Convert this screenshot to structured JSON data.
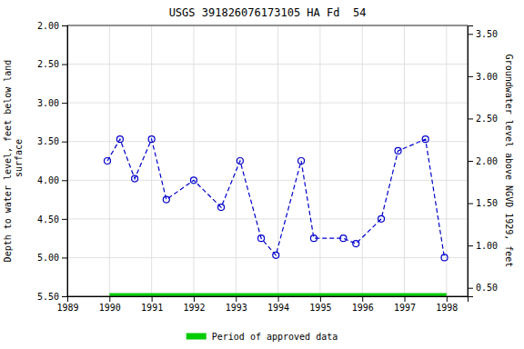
{
  "chart_data": {
    "type": "line",
    "title": "USGS 391826076173105 HA Fd  54",
    "ylabel": "Depth to water level, feet below land\n surface",
    "y2label": "Groundwater level above NGVD 1929, feet",
    "xlim": [
      1989.0,
      1998.5
    ],
    "xticks": [
      1989,
      1990,
      1991,
      1992,
      1993,
      1994,
      1995,
      1996,
      1997,
      1998
    ],
    "ylim": [
      5.5,
      2.0
    ],
    "yticks": [
      {
        "value": 2.0,
        "label": "2.00"
      },
      {
        "value": 2.5,
        "label": "2.50"
      },
      {
        "value": 3.0,
        "label": "3.00"
      },
      {
        "value": 3.5,
        "label": "3.50"
      },
      {
        "value": 4.0,
        "label": "4.00"
      },
      {
        "value": 4.5,
        "label": "4.50"
      },
      {
        "value": 5.0,
        "label": "5.00"
      },
      {
        "value": 5.5,
        "label": "5.50"
      }
    ],
    "y2lim": [
      0.4,
      3.6
    ],
    "y2ticks": [
      {
        "value": 0.5,
        "label": "0.50"
      },
      {
        "value": 1.0,
        "label": "1.00"
      },
      {
        "value": 1.5,
        "label": "1.50"
      },
      {
        "value": 2.0,
        "label": "2.00"
      },
      {
        "value": 2.5,
        "label": "2.50"
      },
      {
        "value": 3.0,
        "label": "3.00"
      },
      {
        "value": 3.5,
        "label": "3.50"
      }
    ],
    "grid": true,
    "legend": "bottom",
    "series": [
      {
        "x": [
          1989.95,
          1990.25,
          1990.6,
          1991.0,
          1991.35,
          1992.0,
          1992.65,
          1993.1,
          1993.6,
          1993.95,
          1994.55,
          1994.85,
          1995.55,
          1995.85,
          1996.45,
          1996.85,
          1997.5,
          1997.95
        ],
        "values": [
          3.75,
          3.47,
          3.98,
          3.47,
          4.25,
          4.0,
          4.35,
          3.75,
          4.75,
          4.97,
          3.75,
          4.75,
          4.75,
          4.82,
          4.5,
          3.62,
          3.47,
          5.0
        ],
        "color": "#0000cc",
        "marker": "circle",
        "line_style": "dashed"
      },
      {
        "name": "Period of approved data",
        "x": [
          1990.0,
          1998.0
        ],
        "values": [
          5.5,
          5.5
        ],
        "color": "#00cc00",
        "line_style": "solid"
      }
    ]
  }
}
